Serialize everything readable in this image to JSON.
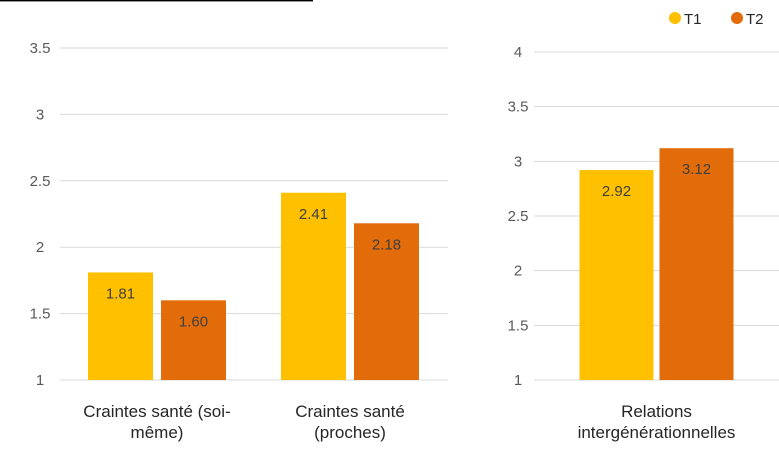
{
  "colors": {
    "t1": "#FFC000",
    "t2": "#E26B0A",
    "grid": "#D9D9D9",
    "axis_text": "#595959",
    "label_text": "#404040",
    "top_rule": "#000000"
  },
  "legend": {
    "position": "top-right",
    "items": [
      {
        "name": "T1",
        "color": "#FFC000"
      },
      {
        "name": "T2",
        "color": "#E26B0A"
      }
    ]
  },
  "chart_data": [
    {
      "type": "bar",
      "categories": [
        [
          "Craintes santé (soi-",
          "même)"
        ],
        [
          "Craintes santé",
          "(proches)"
        ]
      ],
      "series": [
        {
          "name": "T1",
          "values": [
            1.81,
            2.41
          ],
          "labels": [
            "1.81",
            "2.41"
          ]
        },
        {
          "name": "T2",
          "values": [
            1.6,
            2.18
          ],
          "labels": [
            "1.60",
            "2.18"
          ]
        }
      ],
      "ylim": [
        1,
        3.5
      ],
      "yticks": [
        "1",
        "1.5",
        "2",
        "2.5",
        "3",
        "3.5"
      ],
      "grid": true
    },
    {
      "type": "bar",
      "categories": [
        [
          "Relations",
          "intergénérationnelles"
        ]
      ],
      "series": [
        {
          "name": "T1",
          "values": [
            2.92
          ],
          "labels": [
            "2.92"
          ]
        },
        {
          "name": "T2",
          "values": [
            3.12
          ],
          "labels": [
            "3.12"
          ]
        }
      ],
      "ylim": [
        1,
        4
      ],
      "yticks": [
        "1",
        "1.5",
        "2",
        "2.5",
        "3",
        "3.5",
        "4"
      ],
      "grid": true
    }
  ]
}
